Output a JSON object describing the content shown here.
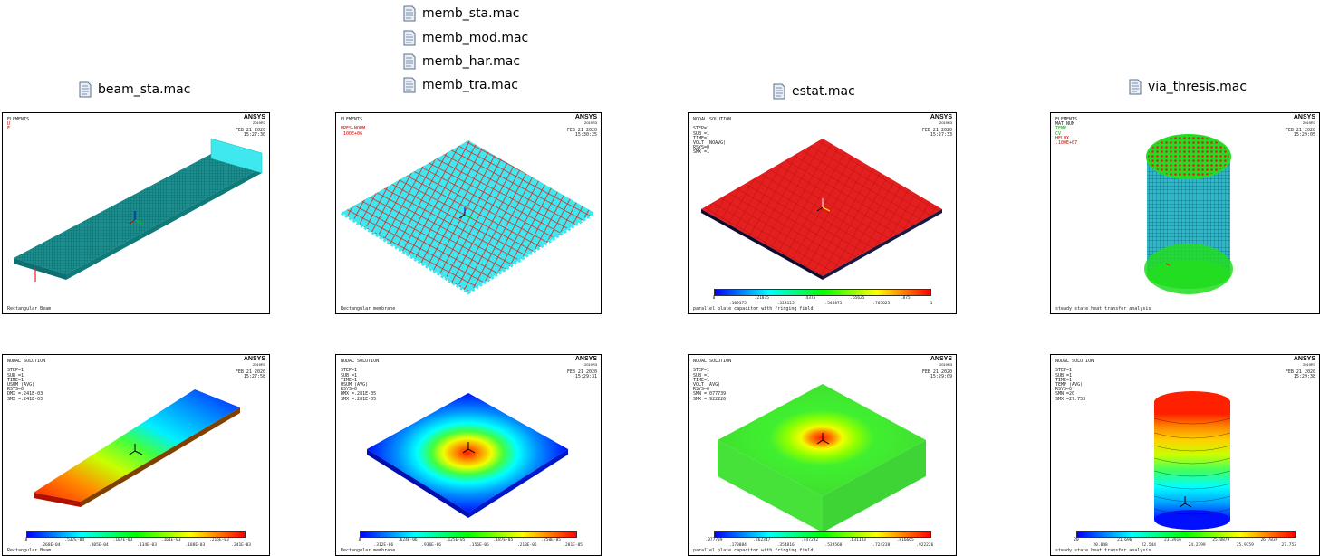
{
  "files": [
    {
      "name": "memb_sta.mac"
    },
    {
      "name": "memb_mod.mac"
    },
    {
      "name": "memb_har.mac"
    },
    {
      "name": "memb_tra.mac"
    },
    {
      "name": "beam_sta.mac"
    },
    {
      "name": "estat.mac"
    },
    {
      "name": "via_thresis.mac"
    }
  ],
  "brand": {
    "name": "ANSYS",
    "version": "2019R3"
  },
  "panels": [
    {
      "header": "ELEMENTS",
      "legend": [
        "U",
        "F"
      ],
      "date": "FEB 21 2020",
      "time": "15:27:30",
      "caption": "Rectangular Beam"
    },
    {
      "header": "ELEMENTS",
      "legend": [
        "PRES-NORM",
        ".100E+06"
      ],
      "date": "FEB 21 2020",
      "time": "15:30:25",
      "caption": "Rectangular membrane"
    },
    {
      "header": "NODAL SOLUTION",
      "legend": [
        "STEP=1",
        "SUB =1",
        "TIME=1",
        "VOLT (NOAVG)",
        "RSYS=0",
        "SMX =1"
      ],
      "date": "FEB 21 2020",
      "time": "15:27:33",
      "caption": "parallel plate capacitor with fringing field",
      "ticks_top": [
        "0",
        ".21875",
        ".4375",
        ".65625",
        ".875"
      ],
      "ticks_bot": [
        ".109375",
        ".328125",
        ".546875",
        ".765625",
        "1"
      ]
    },
    {
      "header": "ELEMENTS",
      "legend": [
        "MAT NUM",
        "TEMP",
        "CV",
        "HFLUX",
        ".100E+07"
      ],
      "date": "FEB 21 2020",
      "time": "15:29:05",
      "caption": "steady state heat transfer analysis"
    },
    {
      "header": "NODAL SOLUTION",
      "legend": [
        "STEP=1",
        "SUB =1",
        "TIME=1",
        "USUM (AVG)",
        "RSYS=0",
        "DMX =.241E-03",
        "SMX =.241E-03"
      ],
      "date": "FEB 21 2020",
      "time": "15:27:58",
      "caption": "Rectangular Beam",
      "ticks_top": [
        "0",
        ".537E-04",
        ".107E-03",
        ".161E-03",
        ".215E-03"
      ],
      "ticks_bot": [
        ".268E-04",
        ".805E-04",
        ".134E-03",
        ".188E-03",
        ".241E-03"
      ]
    },
    {
      "header": "NODAL SOLUTION",
      "legend": [
        "STEP=1",
        "SUB =1",
        "TIME=1",
        "USUM (AVG)",
        "RSYS=0",
        "DMX =.281E-05",
        "SMX =.281E-05"
      ],
      "date": "FEB 21 2020",
      "time": "15:29:31",
      "caption": "Rectangular membrane",
      "ticks_top": [
        "0",
        ".624E-06",
        ".125E-05",
        ".187E-05",
        ".250E-05"
      ],
      "ticks_bot": [
        ".312E-06",
        ".936E-06",
        ".156E-05",
        ".218E-05",
        ".281E-05"
      ]
    },
    {
      "header": "NODAL SOLUTION",
      "legend": [
        "STEP=1",
        "SUB =1",
        "TIME=1",
        "VOLT (AVG)",
        "RSYS=0",
        "SMN =.077739",
        "SMX =.922226"
      ],
      "date": "FEB 21 2020",
      "time": "15:29:09",
      "caption": "parallel plate capacitor with fringing field",
      "ticks_top": [
        ".077739",
        ".262347",
        ".447282",
        ".631133",
        ".816665"
      ],
      "ticks_bot": [
        ".170084",
        ".354816",
        ".539568",
        ".724238",
        ".922226"
      ]
    },
    {
      "header": "NODAL SOLUTION",
      "legend": [
        "STEP=1",
        "SUB =1",
        "TIME=1",
        "TEMP (AVG)",
        "RSYS=0",
        "SMN =20",
        "SMX =27.753"
      ],
      "date": "FEB 21 2020",
      "time": "15:29:38",
      "caption": "steady state heat transfer analysis",
      "ticks_top": [
        "20",
        "21.696",
        "23.3916",
        "25.0879",
        "26.7839"
      ],
      "ticks_bot": [
        "20.848",
        "22.544",
        "24.2399",
        "25.9359",
        "27.753"
      ]
    }
  ],
  "colors": {
    "beam_mesh": "#1b8f8f",
    "cyan": "#3fe8ee",
    "red": "#e41f1f",
    "green": "#22dd22",
    "panel_border": "#000000"
  }
}
